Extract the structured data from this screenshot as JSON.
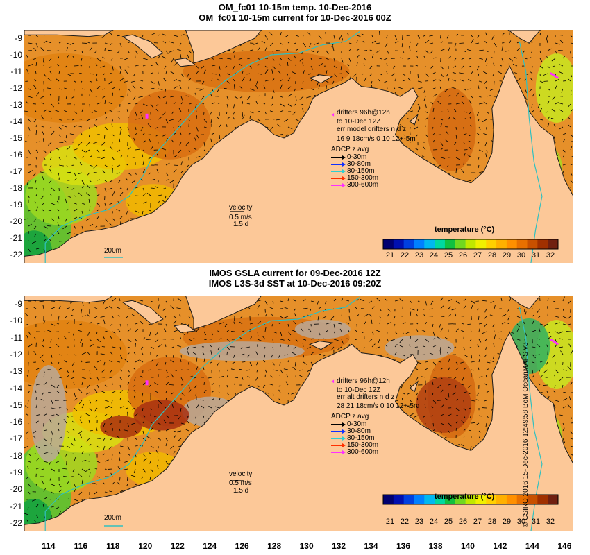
{
  "panels": [
    {
      "title_line1": "OM_fc01 10-15m temp. 10-Dec-2016",
      "title_line2": "OM_fc01 10-15m current for 10-Dec-2016 00Z",
      "drifters": [
        "drifters 96h@12h",
        "to 10-Dec 12Z",
        "err model drifters n d z",
        "16 9 18cm/s 0 10 12+-5m"
      ],
      "adcp_title": "ADCP z avg",
      "adcp_items": [
        "0-30m",
        "30-80m",
        "80-150m",
        "150-300m",
        "300-600m"
      ],
      "velocity": [
        "velocity",
        "0.5 m/s",
        "1.5 d"
      ],
      "scale_label": "200m"
    },
    {
      "title_line1": "IMOS GSLA current for 09-Dec-2016 12Z",
      "title_line2": "IMOS L3S-3d SST at 10-Dec-2016 09:20Z",
      "drifters": [
        "drifters 96h@12h",
        "to 10-Dec 12Z",
        "err alt drifters n d z",
        "28 21 18cm/s 0 10 12+-5m"
      ],
      "adcp_title": "ADCP z avg",
      "adcp_items": [
        "0-30m",
        "30-80m",
        "80-150m",
        "150-300m",
        "300-600m"
      ],
      "velocity": [
        "velocity",
        "0.5 m/s",
        "1.5 d"
      ],
      "scale_label": "200m"
    }
  ],
  "adcp_colors": [
    "#000000",
    "#1030ff",
    "#30d0d0",
    "#ff3000",
    "#ff30ff"
  ],
  "colorbar": {
    "title": "temperature (°C)",
    "ticks": [
      "21",
      "22",
      "23",
      "24",
      "25",
      "26",
      "27",
      "28",
      "29",
      "30",
      "31",
      "32"
    ],
    "colors": [
      "#000070",
      "#0010b0",
      "#0040e0",
      "#0080ff",
      "#00b8f0",
      "#00d8a0",
      "#10c040",
      "#70d820",
      "#c0e800",
      "#f0f000",
      "#ffd000",
      "#ffb000",
      "#ff9000",
      "#e87000",
      "#c85000",
      "#a03000",
      "#702010"
    ]
  },
  "y_ticks": [
    "-9",
    "-10",
    "-11",
    "-12",
    "-13",
    "-14",
    "-15",
    "-16",
    "-17",
    "-18",
    "-19",
    "-20",
    "-21",
    "-22"
  ],
  "x_ticks": [
    "114",
    "116",
    "118",
    "120",
    "122",
    "124",
    "126",
    "128",
    "130",
    "132",
    "134",
    "136",
    "138",
    "140",
    "142",
    "144",
    "146"
  ],
  "map": {
    "lon_range": [
      112.5,
      146.5
    ],
    "lat_range": [
      -22.5,
      -8.5
    ],
    "land_color": "#fcc898",
    "coast_color": "#1a1a1a",
    "isobath_color": "#30c0c0",
    "no_data_color": "#b8a898"
  },
  "credit": "© CSIRO 2016  15-Dec-2016 12:49:58 BoM OceanMAPS v3"
}
